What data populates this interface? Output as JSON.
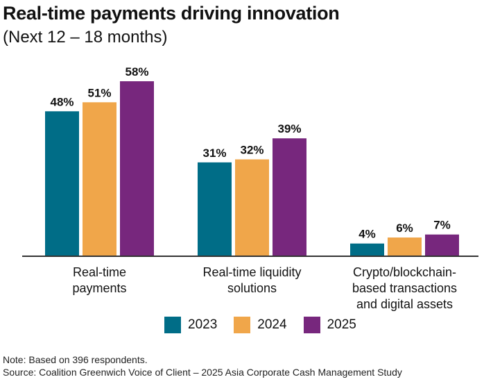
{
  "chart_data": {
    "type": "bar",
    "title": "Real-time payments driving innovation",
    "subtitle": "(Next 12 – 18 months)",
    "categories": [
      [
        "Real-time",
        "payments"
      ],
      [
        "Real-time liquidity",
        "solutions"
      ],
      [
        "Crypto/blockchain-",
        "based transactions",
        "and digital assets"
      ]
    ],
    "series": [
      {
        "name": "2023",
        "color": "#006d87",
        "values": [
          48,
          31,
          4
        ]
      },
      {
        "name": "2024",
        "color": "#f0a64a",
        "values": [
          51,
          32,
          6
        ]
      },
      {
        "name": "2025",
        "color": "#77277d",
        "values": [
          58,
          39,
          7
        ]
      }
    ],
    "value_suffix": "%",
    "ylim": [
      0,
      60
    ],
    "grid": false,
    "legend": "bottom"
  },
  "footer": {
    "note": "Note: Based on 396 respondents.",
    "source": "Source: Coalition Greenwich Voice of Client – 2025 Asia Corporate Cash Management Study"
  }
}
